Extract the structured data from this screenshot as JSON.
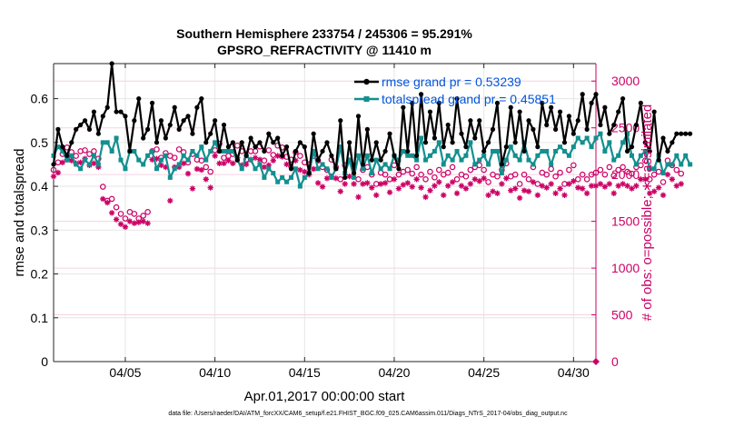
{
  "chart_data": {
    "type": "line",
    "title": "Southern Hemisphere 233754 / 245306 = 95.291%",
    "subtitle": "GPSRO_REFRACTIVITY @ 11410 m",
    "xlabel": "Apr.01,2017 00:00:00 start",
    "ylabel": "rmse and totalspread",
    "ylabel_right": "# of obs: o=possible; ∗=assimilated",
    "footnote": "data file: /Users/raeder/DAI/ATM_forcXX/CAM6_setup/f.e21.FHIST_BGC.f09_025.CAM6assim.011/Diags_NTrS_2017-04/obs_diag_output.nc",
    "x_range_days": [
      1.0,
      31.25
    ],
    "x_ticks": [
      5,
      10,
      15,
      20,
      25,
      30
    ],
    "x_tick_labels": [
      "04/05",
      "04/10",
      "04/15",
      "04/20",
      "04/25",
      "04/30"
    ],
    "ylim": [
      0,
      0.68
    ],
    "y_ticks": [
      0,
      0.1,
      0.2,
      0.3,
      0.4,
      0.5,
      0.6
    ],
    "y_tick_labels": [
      "0",
      "0.1",
      "0.2",
      "0.3",
      "0.4",
      "0.5",
      "0.6"
    ],
    "ylim_right": [
      0,
      3187
    ],
    "y_ticks_right": [
      0,
      500,
      1000,
      1500,
      2000,
      2500,
      3000
    ],
    "y_tick_labels_right": [
      "0",
      "500",
      "1000",
      "1500",
      "2000",
      "2500",
      "3000"
    ],
    "grid": true,
    "legend_position": "top-right",
    "time_step_days": 0.25,
    "colors": {
      "rmse": "#000000",
      "spread": "#138f8f",
      "obs": "#cc0066",
      "legend_text": "#0055dd"
    },
    "series": [
      {
        "name": "rmse grand pr = 0.53239",
        "axis": "left",
        "marker": "filled-circle",
        "values": [
          0.45,
          0.53,
          0.49,
          0.47,
          0.5,
          0.53,
          0.54,
          0.55,
          0.53,
          0.57,
          0.52,
          0.56,
          0.58,
          0.68,
          0.57,
          0.57,
          0.56,
          0.48,
          0.55,
          0.6,
          0.51,
          0.53,
          0.59,
          0.5,
          0.55,
          0.51,
          0.54,
          0.58,
          0.53,
          0.55,
          0.56,
          0.52,
          0.58,
          0.6,
          0.5,
          0.52,
          0.55,
          0.48,
          0.54,
          0.49,
          0.5,
          0.46,
          0.5,
          0.47,
          0.51,
          0.49,
          0.5,
          0.48,
          0.52,
          0.5,
          0.51,
          0.47,
          0.49,
          0.44,
          0.48,
          0.5,
          0.49,
          0.43,
          0.52,
          0.46,
          0.48,
          0.5,
          0.47,
          0.44,
          0.55,
          0.42,
          0.5,
          0.43,
          0.56,
          0.45,
          0.53,
          0.46,
          0.5,
          0.46,
          0.48,
          0.52,
          0.47,
          0.44,
          0.58,
          0.48,
          0.59,
          0.47,
          0.61,
          0.5,
          0.57,
          0.51,
          0.59,
          0.49,
          0.54,
          0.5,
          0.6,
          0.52,
          0.49,
          0.55,
          0.51,
          0.55,
          0.48,
          0.5,
          0.53,
          0.59,
          0.45,
          0.49,
          0.58,
          0.5,
          0.57,
          0.48,
          0.55,
          0.53,
          0.49,
          0.59,
          0.54,
          0.58,
          0.53,
          0.57,
          0.5,
          0.56,
          0.52,
          0.55,
          0.61,
          0.53,
          0.59,
          0.61,
          0.54,
          0.58,
          0.52,
          0.54,
          0.57,
          0.6,
          0.48,
          0.49,
          0.54,
          0.59,
          0.5,
          0.48,
          0.57,
          0.46,
          0.51,
          0.48,
          0.5,
          0.52,
          0.52,
          0.52,
          0.52
        ]
      },
      {
        "name": "totalspread grand pr = 0.45851",
        "axis": "left",
        "marker": "filled-square",
        "values": [
          0.47,
          0.49,
          0.48,
          0.46,
          0.47,
          0.45,
          0.44,
          0.46,
          0.45,
          0.47,
          0.45,
          0.5,
          0.5,
          0.48,
          0.51,
          0.46,
          0.44,
          0.48,
          0.48,
          0.46,
          0.45,
          0.47,
          0.48,
          0.44,
          0.46,
          0.47,
          0.42,
          0.44,
          0.45,
          0.47,
          0.46,
          0.48,
          0.47,
          0.49,
          0.46,
          0.48,
          0.5,
          0.48,
          0.48,
          0.48,
          0.48,
          0.46,
          0.44,
          0.47,
          0.46,
          0.44,
          0.45,
          0.42,
          0.44,
          0.43,
          0.41,
          0.42,
          0.41,
          0.42,
          0.44,
          0.4,
          0.42,
          0.43,
          0.48,
          0.44,
          0.45,
          0.44,
          0.42,
          0.44,
          0.49,
          0.43,
          0.46,
          0.42,
          0.47,
          0.44,
          0.47,
          0.43,
          0.46,
          0.44,
          0.45,
          0.44,
          0.47,
          0.46,
          0.48,
          0.47,
          0.47,
          0.46,
          0.51,
          0.46,
          0.47,
          0.48,
          0.5,
          0.45,
          0.47,
          0.46,
          0.48,
          0.46,
          0.47,
          0.5,
          0.45,
          0.46,
          0.47,
          0.45,
          0.48,
          0.48,
          0.43,
          0.46,
          0.49,
          0.47,
          0.46,
          0.5,
          0.46,
          0.45,
          0.47,
          0.48,
          0.48,
          0.45,
          0.48,
          0.49,
          0.48,
          0.47,
          0.49,
          0.51,
          0.5,
          0.51,
          0.49,
          0.51,
          0.52,
          0.48,
          0.5,
          0.46,
          0.47,
          0.5,
          0.52,
          0.47,
          0.45,
          0.47,
          0.48,
          0.44,
          0.44,
          0.47,
          0.43,
          0.45,
          0.45,
          0.47,
          0.45,
          0.47,
          0.45
        ]
      },
      {
        "name": "possible",
        "axis": "right",
        "marker": "open-circle",
        "values": [
          2050,
          2130,
          2220,
          2290,
          2240,
          2200,
          2250,
          2260,
          2220,
          2250,
          2170,
          1870,
          1720,
          1740,
          1650,
          1580,
          1530,
          1600,
          1580,
          1530,
          1560,
          1600,
          2250,
          2270,
          2180,
          2230,
          2200,
          2180,
          2270,
          2240,
          2130,
          2220,
          2160,
          2150,
          2080,
          2030,
          2260,
          2330,
          2180,
          2200,
          2220,
          2310,
          2250,
          2160,
          2250,
          2250,
          2300,
          2150,
          2260,
          2210,
          2310,
          2290,
          2190,
          2160,
          2240,
          2200,
          2130,
          2110,
          2200,
          2150,
          2080,
          2050,
          2160,
          2080,
          1950,
          2100,
          2150,
          2100,
          1950,
          2050,
          2080,
          2000,
          1900,
          2020,
          2000,
          1950,
          2100,
          2000,
          2030,
          2050,
          2010,
          2080,
          2000,
          1950,
          2030,
          1970,
          2050,
          2000,
          2020,
          2080,
          1950,
          2000,
          1980,
          2050,
          2080,
          2100,
          2050,
          1920,
          2000,
          1980,
          2050,
          2120,
          1980,
          2000,
          1900,
          2000,
          1950,
          2080,
          1900,
          2020,
          2000,
          2060,
          1980,
          2020,
          1900,
          2050,
          2100,
          1950,
          2000,
          1950,
          2000,
          2020,
          2050,
          2000,
          2080,
          1990,
          2050,
          2080,
          2030,
          2010,
          2080,
          2100,
          2150,
          1950,
          2000,
          2030,
          1920,
          2150,
          2100,
          2050,
          2010
        ]
      },
      {
        "name": "assimilated",
        "axis": "right",
        "marker": "asterisk",
        "values": [
          1980,
          2020,
          2130,
          2160,
          2150,
          2120,
          2130,
          2170,
          2100,
          2120,
          2080,
          1740,
          1700,
          1590,
          1520,
          1470,
          1440,
          1500,
          1480,
          1490,
          1500,
          1480,
          2160,
          2170,
          2100,
          2080,
          1720,
          2080,
          2080,
          2120,
          2010,
          1850,
          2060,
          2050,
          1950,
          1860,
          2200,
          2120,
          2120,
          2150,
          2120,
          2180,
          2100,
          2110,
          2160,
          2180,
          2160,
          2080,
          2100,
          2150,
          2200,
          2190,
          2110,
          2080,
          2150,
          2050,
          2030,
          2000,
          2060,
          1910,
          1870,
          1960,
          1980,
          1960,
          1820,
          1900,
          1980,
          1900,
          1760,
          1900,
          1910,
          1860,
          1780,
          1900,
          1910,
          1810,
          1950,
          1850,
          1890,
          1910,
          1870,
          1950,
          1860,
          1760,
          1830,
          1880,
          1920,
          1780,
          1880,
          1920,
          1800,
          1880,
          1850,
          1900,
          1950,
          1930,
          1960,
          1780,
          1820,
          1800,
          1900,
          1960,
          1830,
          1850,
          1750,
          1830,
          1820,
          1920,
          1780,
          1880,
          1860,
          1900,
          1800,
          1850,
          1780,
          1900,
          1930,
          1860,
          1850,
          1800,
          1880,
          1880,
          1900,
          1870,
          1900,
          1800,
          1880,
          1900,
          1880,
          1850,
          1880,
          1950,
          1950,
          1800,
          1820,
          1860,
          1780,
          2000,
          1950,
          1880,
          1900
        ]
      }
    ]
  }
}
